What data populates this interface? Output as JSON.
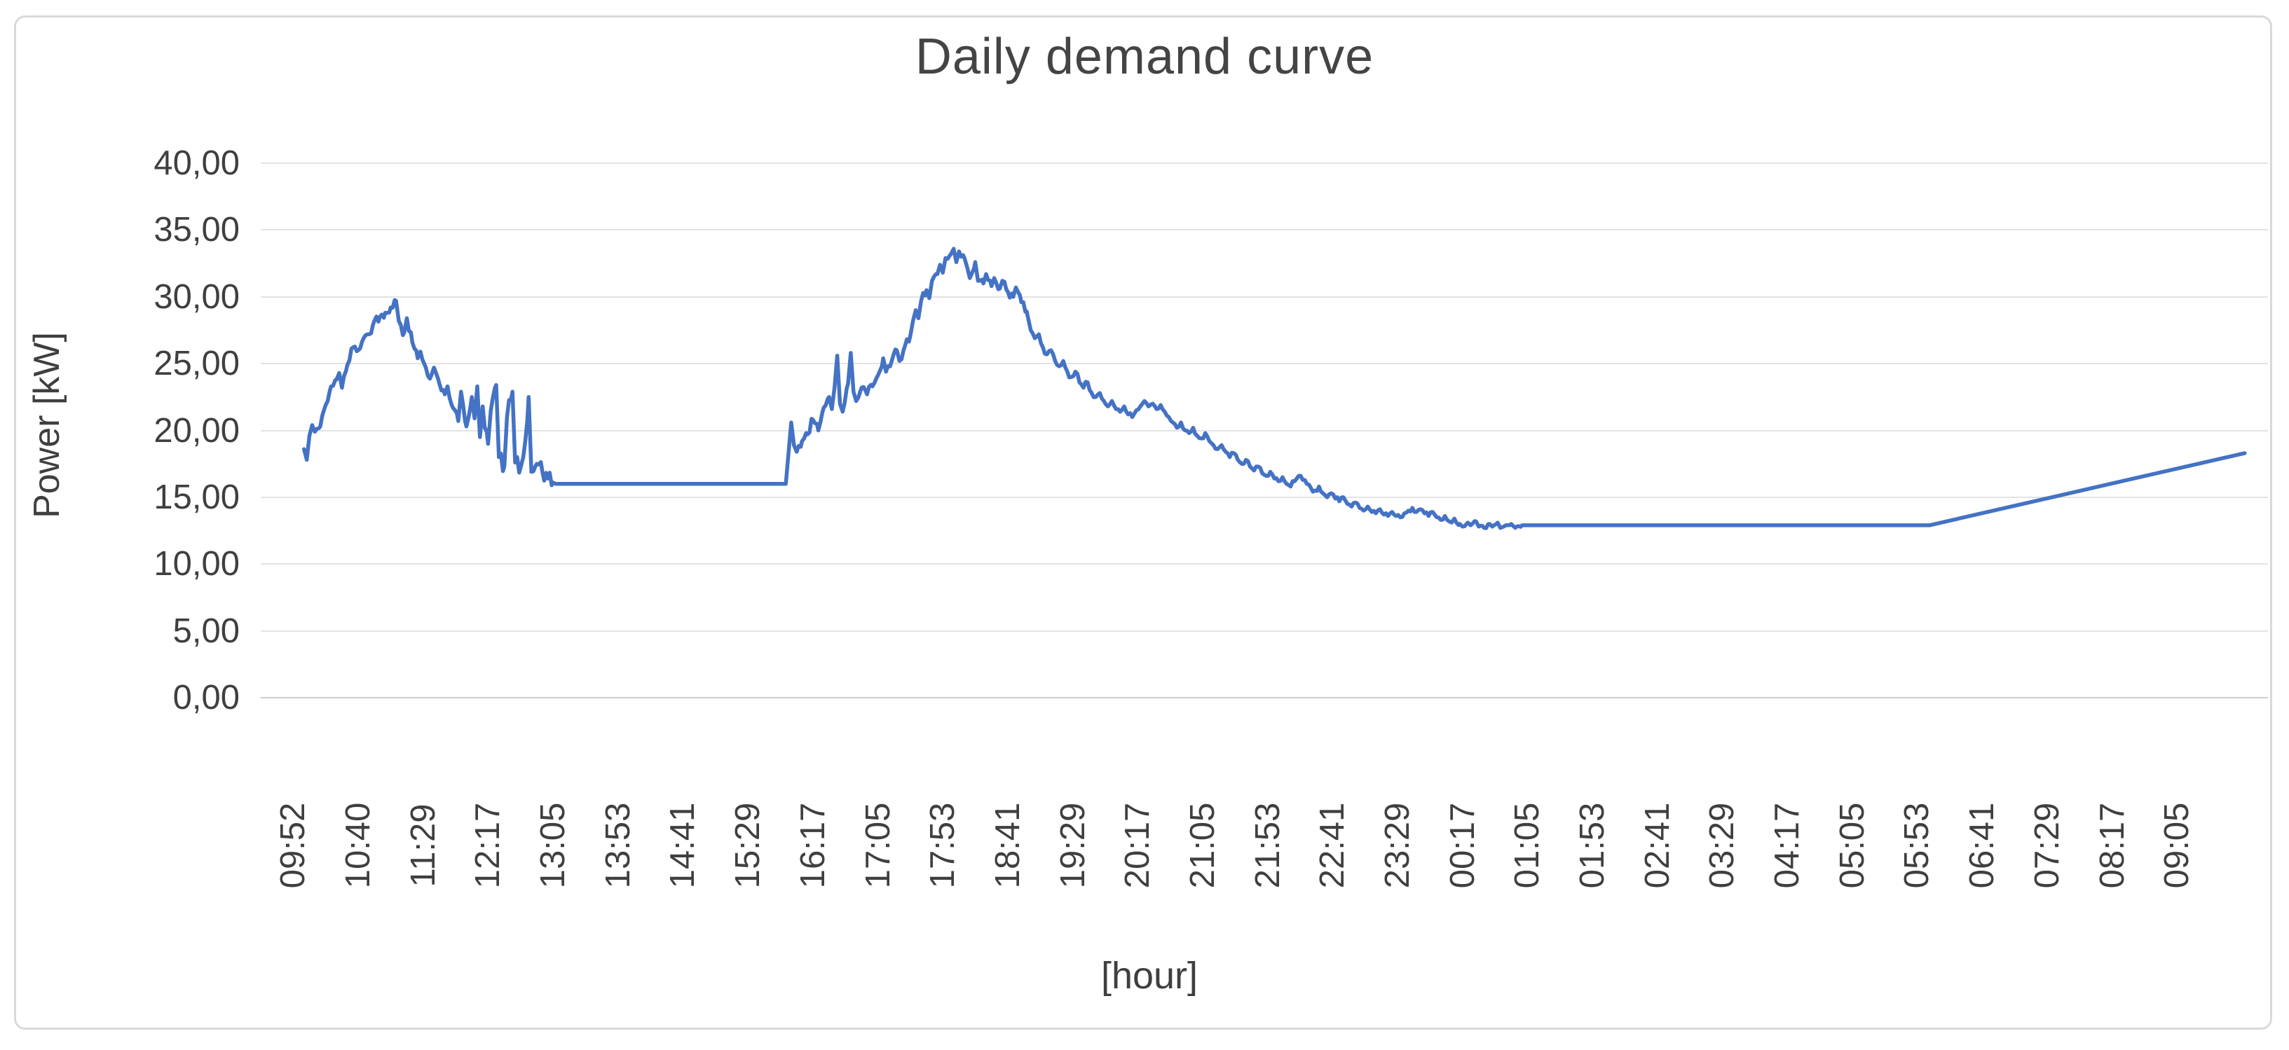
{
  "chart_data": {
    "type": "line",
    "title": "Daily demand curve",
    "xlabel": "[hour]",
    "ylabel": "Power [kW]",
    "ylim": [
      0,
      40
    ],
    "y_tick_values": [
      40,
      35,
      30,
      25,
      20,
      15,
      10,
      5,
      0
    ],
    "y_tick_labels": [
      "40,00",
      "35,00",
      "30,00",
      "25,00",
      "20,00",
      "15,00",
      "10,00",
      "5,00",
      "0,00"
    ],
    "x_tick_labels": [
      "09:52",
      "10:40",
      "11:29",
      "12:17",
      "13:05",
      "13:53",
      "14:41",
      "15:29",
      "16:17",
      "17:05",
      "17:53",
      "18:41",
      "19:29",
      "20:17",
      "21:05",
      "21:53",
      "22:41",
      "23:29",
      "00:17",
      "01:05",
      "01:53",
      "02:41",
      "03:29",
      "04:17",
      "05:05",
      "05:53",
      "06:41",
      "07:29",
      "08:17",
      "09:05"
    ],
    "minutes_per_slot": 48,
    "grid": true,
    "legend": false,
    "line_color": "#4472C4",
    "series_spec": {
      "units": "minutes from 09:52, kW",
      "t_offset_min": 8,
      "jitter_step_min": 1.5,
      "segments": [
        {
          "noise": 0.45,
          "points": [
            [
              0,
              18.6
            ],
            [
              2,
              17.8
            ],
            [
              4,
              19.6
            ],
            [
              6,
              20.4
            ],
            [
              8,
              19.9
            ],
            [
              12,
              20.3
            ],
            [
              16,
              21.9
            ],
            [
              20,
              23.3
            ],
            [
              24,
              23.8
            ],
            [
              26,
              24.3
            ],
            [
              28,
              23.2
            ],
            [
              32,
              24.9
            ],
            [
              36,
              26.2
            ],
            [
              40,
              26.0
            ],
            [
              44,
              26.9
            ],
            [
              48,
              27.2
            ],
            [
              52,
              28.2
            ],
            [
              56,
              28.5
            ],
            [
              60,
              28.8
            ],
            [
              64,
              29.2
            ],
            [
              68,
              29.7
            ]
          ]
        },
        {
          "noise": 0.6,
          "points": [
            [
              70,
              28.2
            ],
            [
              74,
              27.3
            ],
            [
              76,
              28.4
            ],
            [
              80,
              26.6
            ],
            [
              84,
              25.4
            ],
            [
              86,
              25.9
            ],
            [
              90,
              24.7
            ],
            [
              94,
              24.1
            ],
            [
              96,
              24.7
            ],
            [
              100,
              23.5
            ],
            [
              104,
              22.7
            ],
            [
              106,
              23.3
            ],
            [
              110,
              21.7
            ],
            [
              114,
              20.7
            ],
            [
              116,
              22.9
            ],
            [
              120,
              20.3
            ],
            [
              124,
              22.5
            ],
            [
              126,
              20.9
            ]
          ]
        },
        {
          "noise": 0.9,
          "points": [
            [
              128,
              23.3
            ],
            [
              130,
              19.5
            ],
            [
              132,
              21.8
            ],
            [
              136,
              19.0
            ],
            [
              138,
              21.5
            ],
            [
              142,
              23.4
            ],
            [
              144,
              18.0
            ],
            [
              148,
              17.3
            ],
            [
              150,
              21.0
            ],
            [
              154,
              22.9
            ],
            [
              156,
              17.6
            ],
            [
              160,
              17.2
            ],
            [
              162,
              18.0
            ],
            [
              166,
              22.5
            ],
            [
              168,
              16.9
            ],
            [
              172,
              17.5
            ],
            [
              176,
              17.0
            ],
            [
              180,
              16.4
            ],
            [
              184,
              16.1
            ]
          ]
        },
        {
          "noise": 0,
          "points": [
            [
              186,
              16.0
            ],
            [
              356,
              16.0
            ]
          ]
        },
        {
          "noise": 0.5,
          "points": [
            [
              358,
              18.3
            ],
            [
              360,
              20.6
            ],
            [
              362,
              18.9
            ],
            [
              364,
              18.4
            ],
            [
              368,
              19.2
            ],
            [
              372,
              19.7
            ],
            [
              376,
              20.8
            ],
            [
              380,
              20.0
            ],
            [
              384,
              21.7
            ],
            [
              388,
              22.5
            ],
            [
              390,
              21.6
            ],
            [
              392,
              23.2
            ],
            [
              394,
              25.6
            ],
            [
              396,
              22.0
            ],
            [
              398,
              21.4
            ],
            [
              402,
              23.5
            ],
            [
              404,
              25.8
            ],
            [
              406,
              22.9
            ],
            [
              408,
              22.2
            ],
            [
              412,
              23.2
            ],
            [
              416,
              22.7
            ],
            [
              420,
              23.3
            ],
            [
              424,
              24.1
            ],
            [
              428,
              25.4
            ],
            [
              430,
              24.4
            ],
            [
              434,
              25.1
            ],
            [
              438,
              26.0
            ],
            [
              440,
              25.2
            ],
            [
              444,
              26.3
            ],
            [
              448,
              27.1
            ]
          ]
        },
        {
          "noise": 0.45,
          "points": [
            [
              450,
              28.2
            ],
            [
              452,
              29.0
            ],
            [
              454,
              28.4
            ],
            [
              456,
              29.7
            ],
            [
              460,
              30.5
            ],
            [
              462,
              29.9
            ],
            [
              464,
              31.2
            ],
            [
              468,
              31.7
            ],
            [
              470,
              32.4
            ],
            [
              472,
              31.8
            ],
            [
              474,
              32.9
            ],
            [
              478,
              33.2
            ],
            [
              480,
              33.6
            ],
            [
              482,
              32.6
            ],
            [
              484,
              33.4
            ],
            [
              488,
              32.9
            ]
          ]
        },
        {
          "noise": 0.45,
          "points": [
            [
              490,
              32.2
            ],
            [
              492,
              31.4
            ],
            [
              496,
              32.6
            ],
            [
              498,
              31.2
            ],
            [
              502,
              31.0
            ],
            [
              504,
              31.7
            ],
            [
              508,
              30.8
            ],
            [
              510,
              31.4
            ],
            [
              514,
              30.6
            ],
            [
              516,
              31.2
            ],
            [
              520,
              30.4
            ],
            [
              524,
              30.0
            ],
            [
              526,
              30.7
            ],
            [
              530,
              29.6
            ],
            [
              534,
              28.9
            ]
          ]
        },
        {
          "noise": 0.35,
          "points": [
            [
              537,
              27.5
            ],
            [
              540,
              26.9
            ],
            [
              543,
              27.2
            ],
            [
              546,
              26.2
            ],
            [
              549,
              25.7
            ],
            [
              552,
              26.0
            ],
            [
              555,
              25.2
            ],
            [
              558,
              24.8
            ],
            [
              561,
              25.2
            ],
            [
              564,
              24.4
            ],
            [
              567,
              24.0
            ],
            [
              570,
              24.4
            ],
            [
              573,
              23.6
            ],
            [
              576,
              23.2
            ],
            [
              579,
              23.6
            ],
            [
              582,
              22.8
            ],
            [
              585,
              22.5
            ],
            [
              588,
              22.8
            ],
            [
              591,
              22.2
            ],
            [
              594,
              21.8
            ],
            [
              597,
              22.2
            ],
            [
              600,
              21.6
            ],
            [
              603,
              21.4
            ],
            [
              606,
              21.8
            ],
            [
              609,
              21.2
            ],
            [
              612,
              21.0
            ]
          ]
        },
        {
          "noise": 0.3,
          "points": [
            [
              615,
              21.5
            ],
            [
              618,
              21.8
            ],
            [
              621,
              22.2
            ],
            [
              624,
              21.8
            ],
            [
              627,
              22.0
            ],
            [
              630,
              21.6
            ],
            [
              633,
              21.9
            ],
            [
              636,
              21.4
            ],
            [
              639,
              21.0
            ],
            [
              642,
              20.6
            ],
            [
              645,
              20.2
            ],
            [
              648,
              20.6
            ],
            [
              651,
              20.0
            ],
            [
              654,
              19.8
            ],
            [
              657,
              20.2
            ],
            [
              660,
              19.6
            ],
            [
              663,
              19.4
            ],
            [
              666,
              19.8
            ],
            [
              669,
              19.2
            ]
          ]
        },
        {
          "noise": 0.3,
          "points": [
            [
              672,
              18.9
            ],
            [
              675,
              18.6
            ],
            [
              678,
              18.9
            ],
            [
              681,
              18.4
            ],
            [
              684,
              18.0
            ],
            [
              687,
              18.3
            ],
            [
              690,
              17.8
            ],
            [
              693,
              17.5
            ],
            [
              696,
              17.8
            ],
            [
              699,
              17.3
            ],
            [
              702,
              17.0
            ],
            [
              705,
              17.3
            ],
            [
              708,
              16.8
            ],
            [
              711,
              16.6
            ],
            [
              714,
              16.9
            ],
            [
              717,
              16.4
            ],
            [
              720,
              16.2
            ],
            [
              723,
              16.5
            ],
            [
              726,
              16.0
            ],
            [
              729,
              15.8
            ],
            [
              732,
              16.2
            ],
            [
              735,
              16.6
            ],
            [
              738,
              16.3
            ],
            [
              741,
              16.0
            ],
            [
              744,
              15.7
            ],
            [
              747,
              15.5
            ],
            [
              750,
              15.8
            ],
            [
              753,
              15.3
            ],
            [
              756,
              15.0
            ],
            [
              759,
              15.3
            ],
            [
              762,
              14.9
            ],
            [
              765,
              14.7
            ],
            [
              768,
              15.0
            ]
          ]
        },
        {
          "noise": 0.25,
          "points": [
            [
              771,
              14.5
            ],
            [
              774,
              14.3
            ],
            [
              777,
              14.6
            ],
            [
              780,
              14.2
            ],
            [
              783,
              14.0
            ],
            [
              786,
              14.3
            ],
            [
              789,
              13.9
            ],
            [
              792,
              13.8
            ],
            [
              795,
              14.1
            ],
            [
              798,
              13.7
            ],
            [
              801,
              13.6
            ],
            [
              804,
              13.9
            ],
            [
              807,
              13.6
            ],
            [
              810,
              13.5
            ],
            [
              813,
              13.8
            ],
            [
              816,
              14.0
            ],
            [
              819,
              14.2
            ],
            [
              822,
              13.9
            ],
            [
              825,
              14.1
            ],
            [
              828,
              13.8
            ],
            [
              831,
              13.6
            ],
            [
              834,
              13.9
            ],
            [
              837,
              13.5
            ],
            [
              840,
              13.3
            ],
            [
              843,
              13.6
            ],
            [
              846,
              13.2
            ]
          ]
        },
        {
          "noise": 0.28,
          "points": [
            [
              848,
              13.1
            ],
            [
              850,
              13.4
            ],
            [
              854,
              13.0
            ],
            [
              856,
              12.8
            ],
            [
              860,
              13.1
            ],
            [
              862,
              12.9
            ],
            [
              866,
              13.2
            ],
            [
              868,
              12.8
            ],
            [
              872,
              12.7
            ],
            [
              876,
              13.0
            ],
            [
              878,
              12.8
            ],
            [
              882,
              13.1
            ],
            [
              884,
              12.7
            ],
            [
              888,
              12.9
            ],
            [
              892,
              13.0
            ],
            [
              896,
              12.8
            ],
            [
              900,
              12.9
            ]
          ]
        },
        {
          "noise": 0,
          "points": [
            [
              900,
              12.9
            ],
            [
              1201,
              12.9
            ]
          ]
        },
        {
          "noise": 0,
          "points": [
            [
              1201,
              12.9
            ],
            [
              1434,
              18.3
            ]
          ]
        }
      ]
    }
  }
}
